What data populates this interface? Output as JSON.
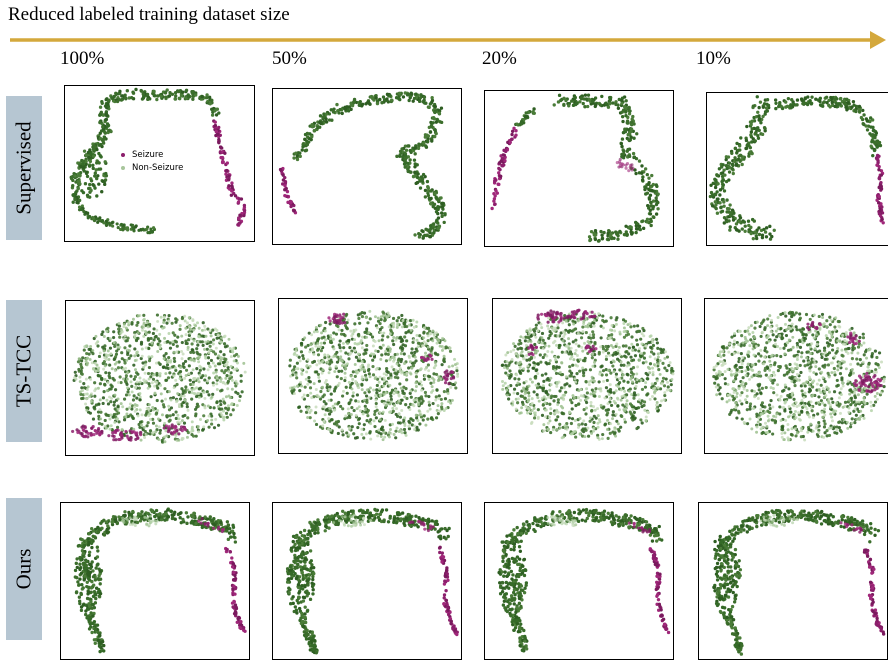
{
  "title": "Reduced labeled training dataset size",
  "colors": {
    "arrow": "#d4a83c",
    "seizure": "#8c1f6c",
    "non_seizure": "#3c6e2c",
    "label_bg": "#b6c6d2"
  },
  "chart_data": {
    "type": "scatter",
    "columns": [
      "100%",
      "50%",
      "20%",
      "10%"
    ],
    "rows": [
      "Supervised",
      "TS-TCC",
      "Ours"
    ],
    "legend": {
      "items": [
        "Seizure",
        "Non-Seizure"
      ],
      "panel": "Supervised 100%"
    },
    "series": [
      "Seizure",
      "Non-Seizure"
    ]
  }
}
